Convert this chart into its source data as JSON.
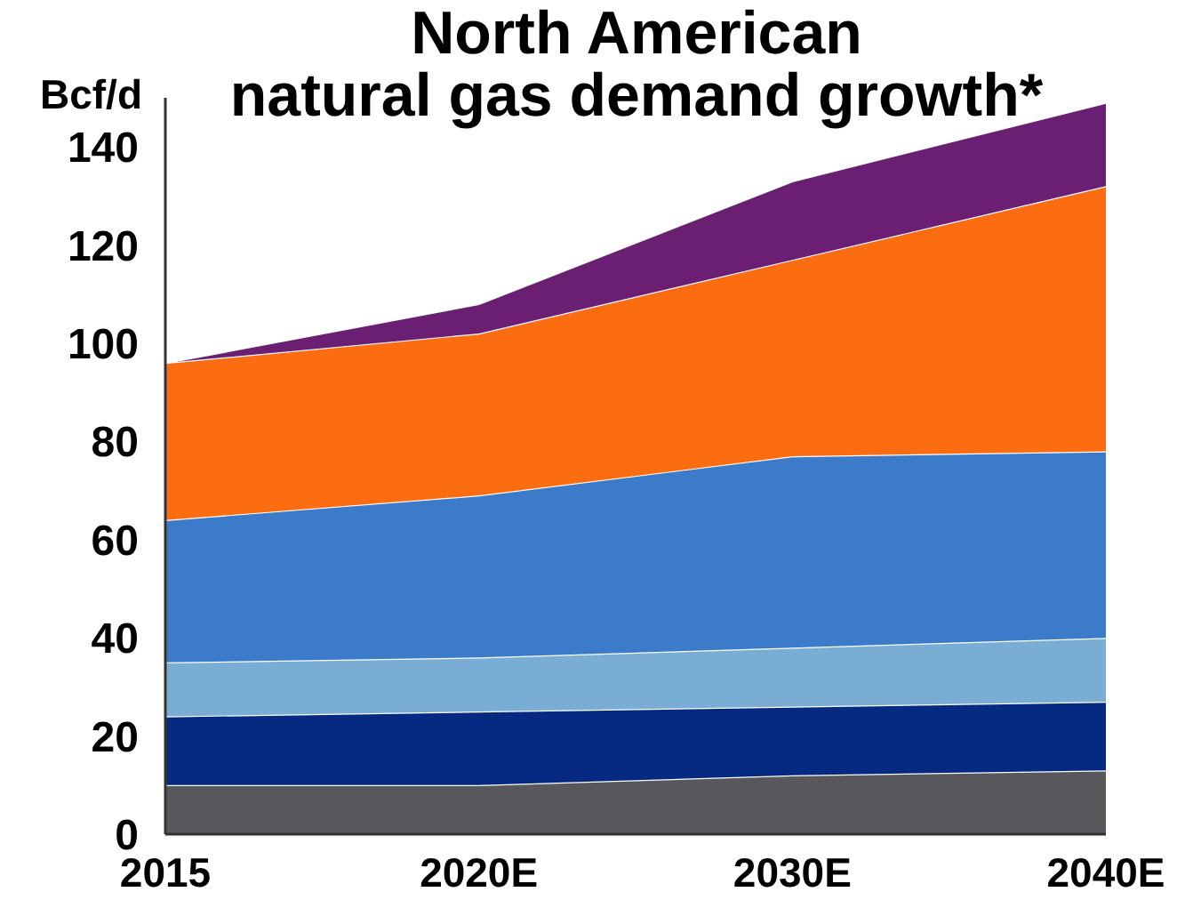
{
  "chart_data": {
    "type": "area",
    "title": "North American\nnatural gas demand growth*",
    "ylabel": "Bcf/d",
    "categories": [
      "2015",
      "2020E",
      "2030E",
      "2040E"
    ],
    "stacked": true,
    "ylim": [
      0,
      150
    ],
    "yticks": [
      0,
      20,
      40,
      60,
      80,
      100,
      120,
      140
    ],
    "series": [
      {
        "color": "#58585c",
        "values": [
          10,
          10,
          12,
          13
        ]
      },
      {
        "color": "#062a82",
        "values": [
          14,
          15,
          14,
          14
        ]
      },
      {
        "color": "#7aadd4",
        "values": [
          11,
          11,
          12,
          13
        ]
      },
      {
        "color": "#3b7bc9",
        "values": [
          29,
          33,
          39,
          38
        ]
      },
      {
        "color": "#fc6c11",
        "values": [
          32,
          33,
          40,
          54
        ]
      },
      {
        "color": "#6b1f73",
        "values": [
          0,
          6,
          16,
          17
        ]
      }
    ]
  }
}
